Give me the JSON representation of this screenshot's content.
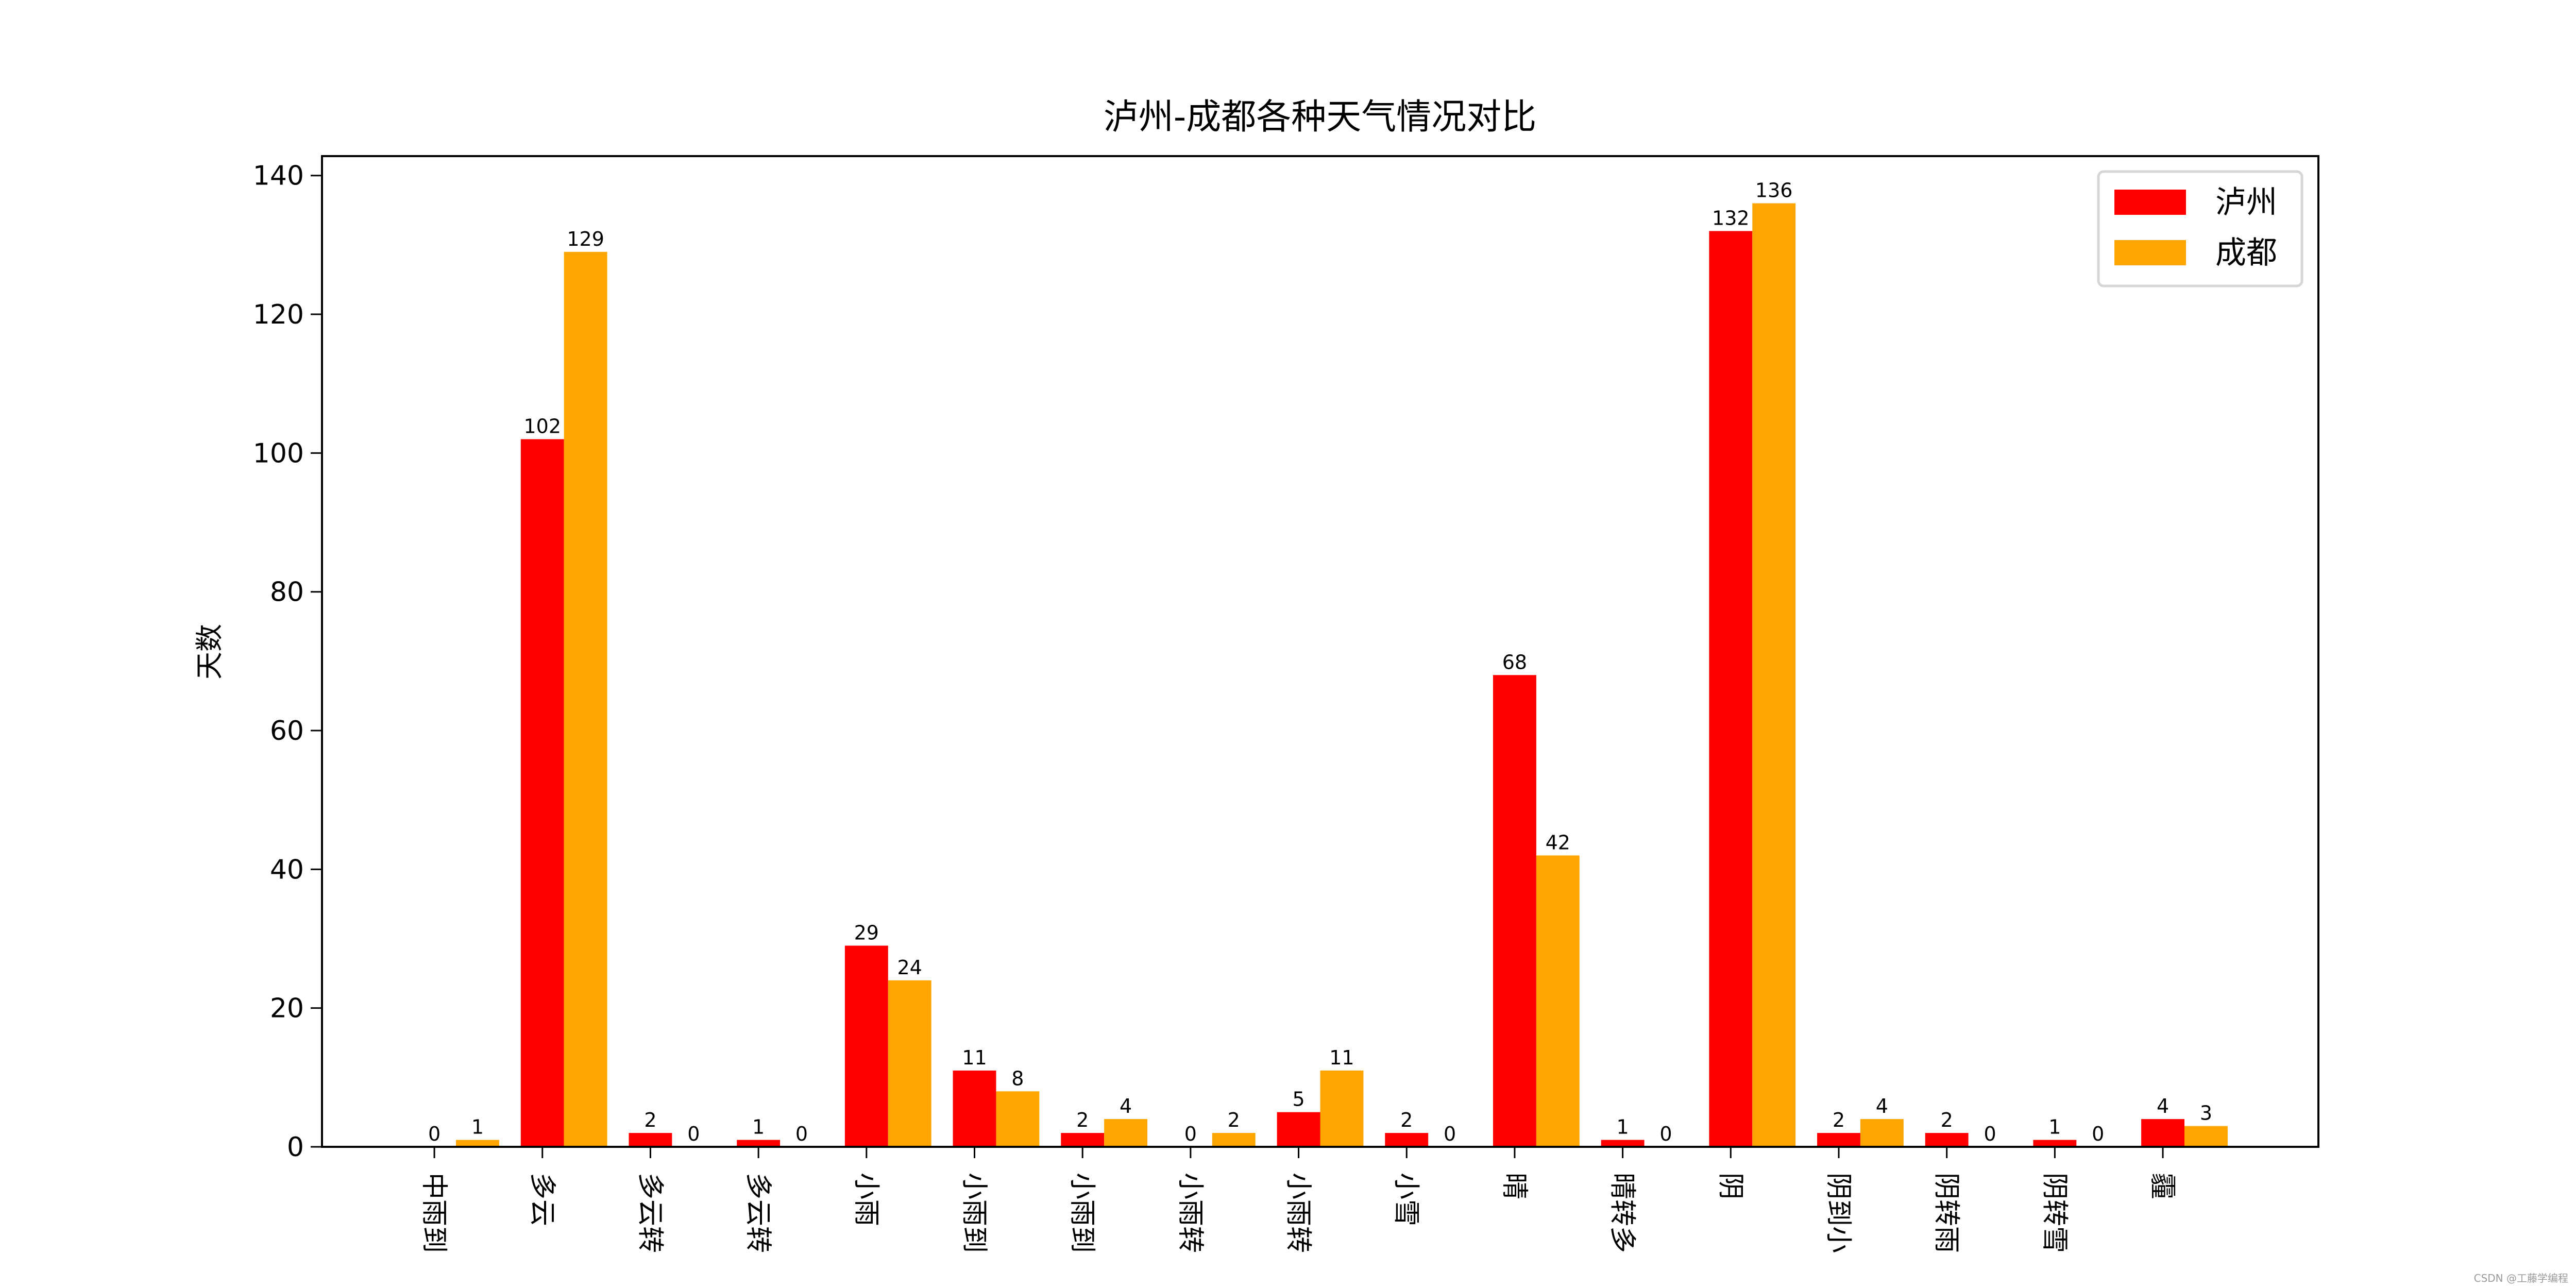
{
  "chart_data": {
    "type": "bar",
    "title": "泸州-成都各种天气情况对比",
    "xlabel": "",
    "ylabel": "天数",
    "categories": [
      "中雨到",
      "多云",
      "多云转",
      "多云转",
      "小雨",
      "小雨到",
      "小雨到",
      "小雨转",
      "小雨转",
      "小雪",
      "晴",
      "晴转多",
      "阴",
      "阴到小",
      "阴转雨",
      "阴转雪",
      "霾"
    ],
    "series": [
      {
        "name": "泸州",
        "color": "#ff0000",
        "values": [
          0,
          102,
          2,
          1,
          29,
          11,
          2,
          0,
          5,
          2,
          68,
          1,
          132,
          2,
          2,
          1,
          4
        ]
      },
      {
        "name": "成都",
        "color": "#ffa500",
        "values": [
          1,
          129,
          0,
          0,
          24,
          8,
          4,
          2,
          11,
          0,
          42,
          0,
          136,
          4,
          0,
          0,
          3
        ]
      }
    ],
    "ylim": [
      0,
      142.8
    ],
    "yticks": [
      0,
      20,
      40,
      60,
      80,
      100,
      120,
      140
    ],
    "grid": false,
    "legend_position": "top-right",
    "data_labels": true
  },
  "watermark": "CSDN @工藤学编程"
}
